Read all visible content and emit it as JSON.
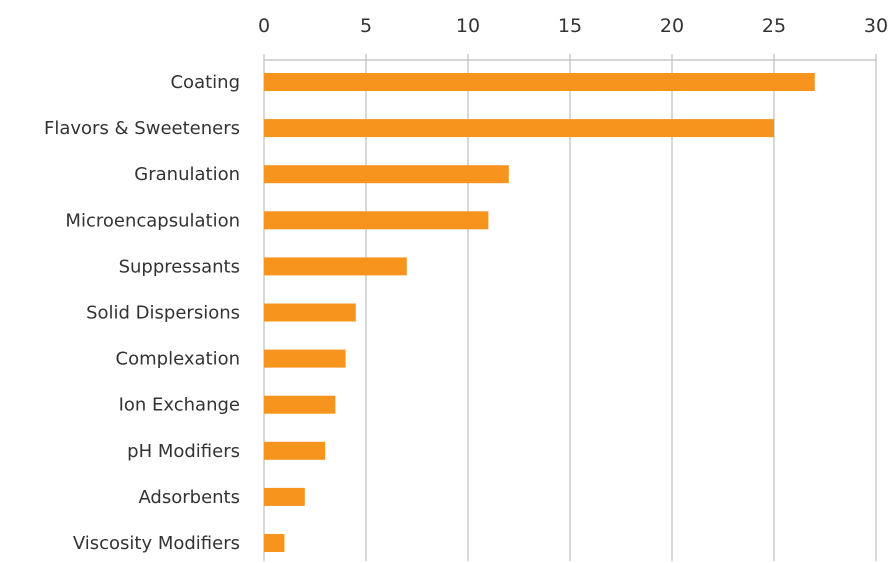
{
  "chart_data": {
    "type": "bar",
    "orientation": "horizontal",
    "categories": [
      "Coating",
      "Flavors & Sweeteners",
      "Granulation",
      "Microencapsulation",
      "Suppressants",
      "Solid Dispersions",
      "Complexation",
      "Ion Exchange",
      "pH Modifiers",
      "Adsorbents",
      "Viscosity Modifiers"
    ],
    "values": [
      27,
      25,
      12,
      11,
      7,
      4.5,
      4,
      3.5,
      3,
      2,
      1
    ],
    "xlim": [
      0,
      30
    ],
    "x_ticks": [
      "0",
      "5",
      "10",
      "15",
      "20",
      "25",
      "30"
    ],
    "x_axis_position": "top",
    "title": "",
    "xlabel": "",
    "ylabel": "",
    "grid": "vertical",
    "legend": "none",
    "colors": {
      "bar": "#F7941D",
      "grid": "#BDBDBD",
      "text": "#333333"
    }
  }
}
